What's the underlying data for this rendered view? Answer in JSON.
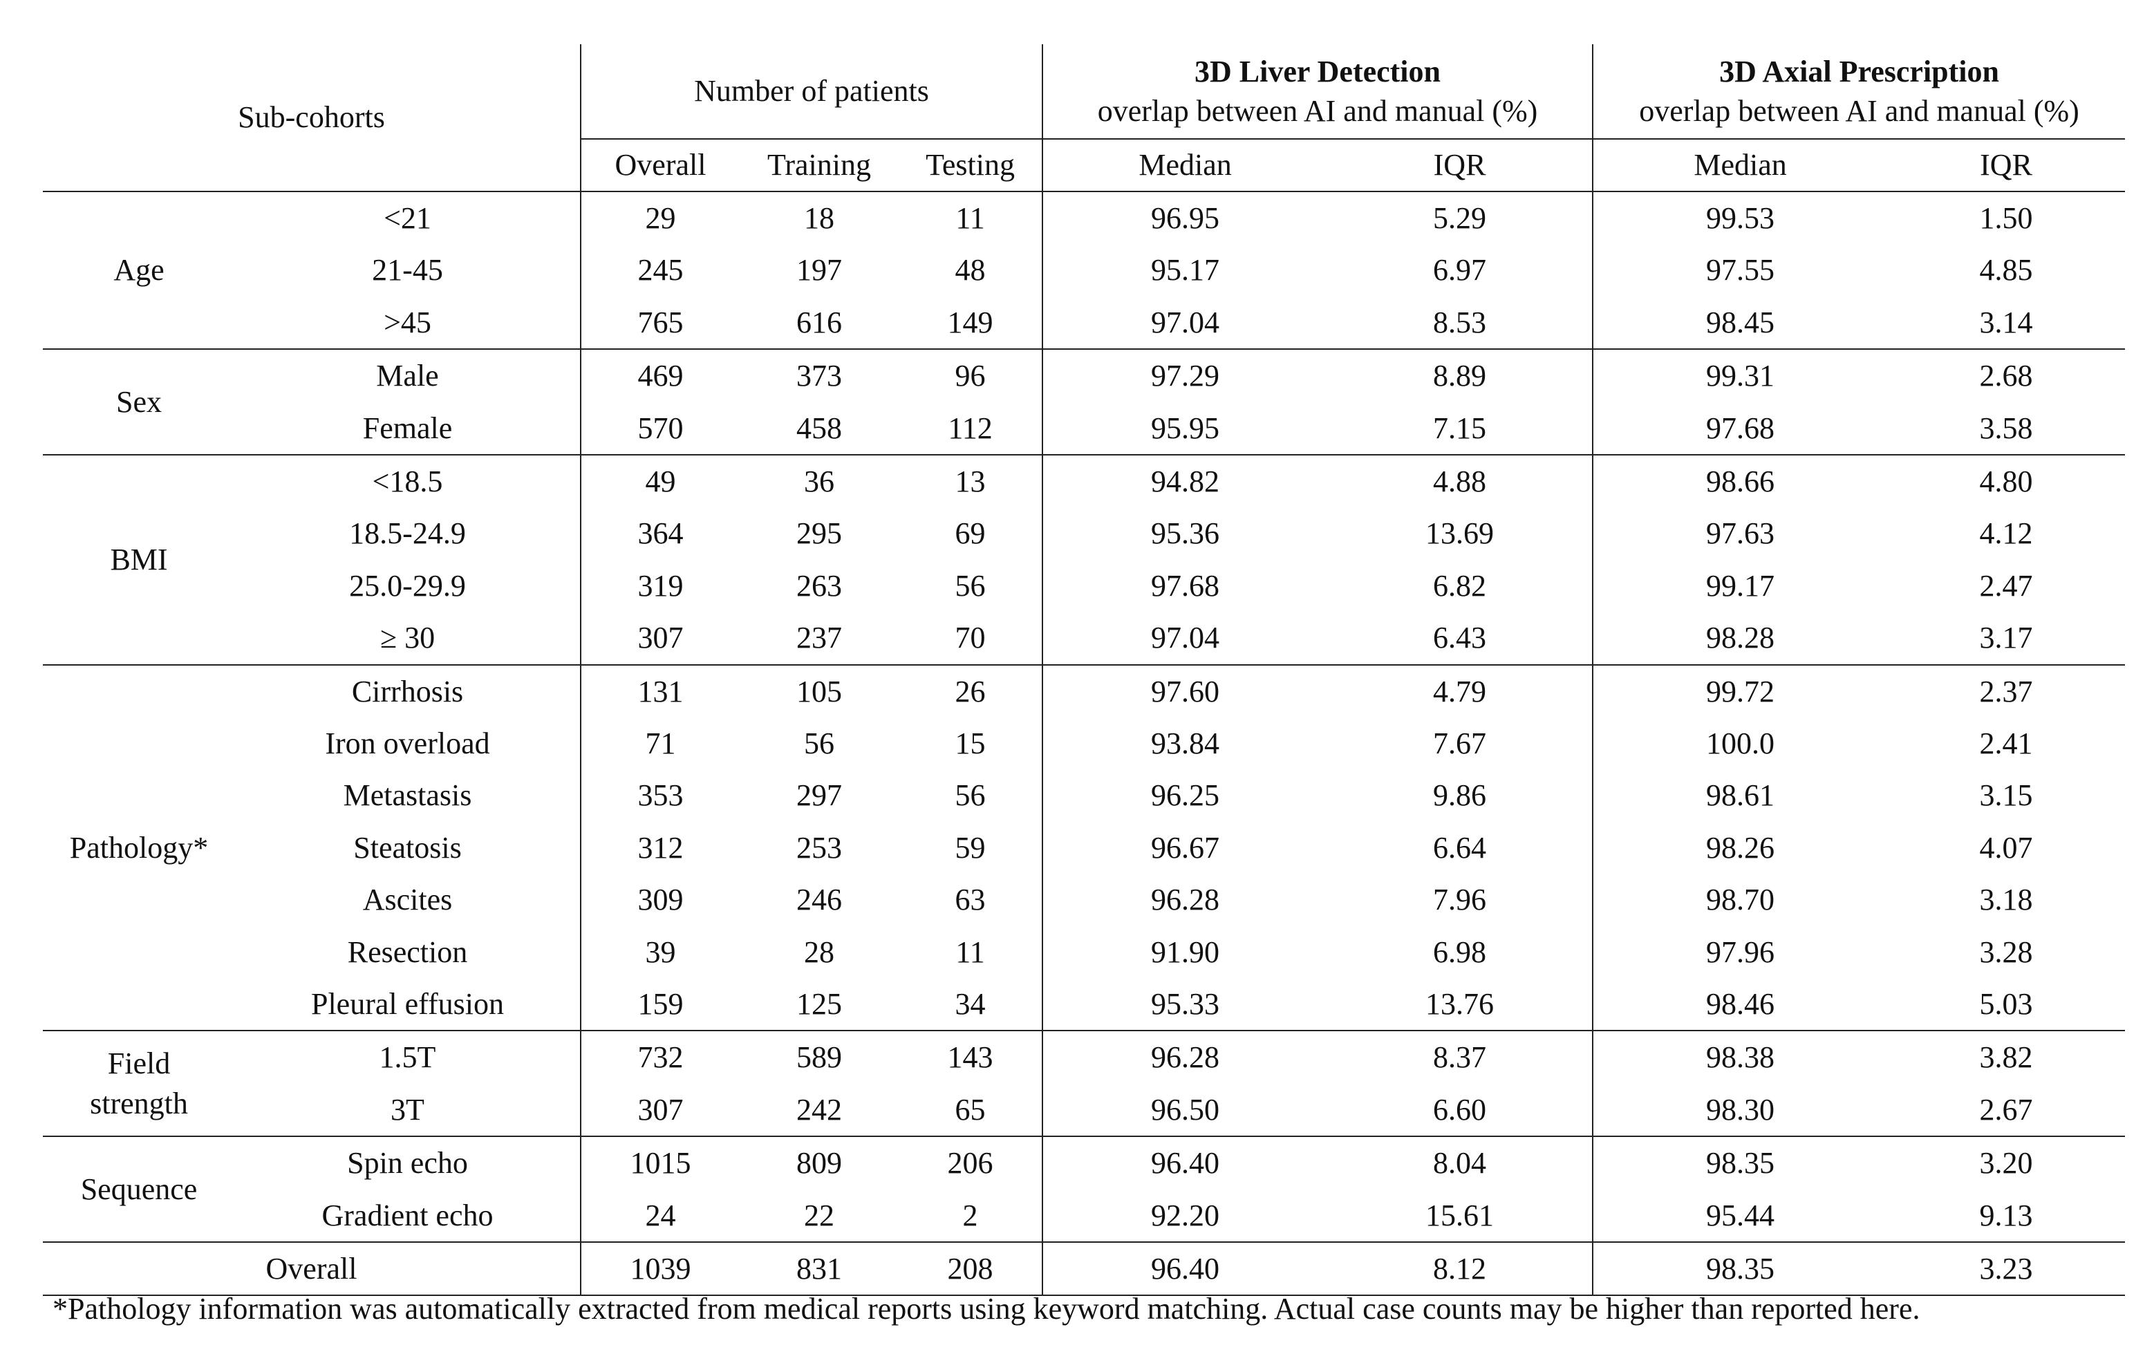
{
  "header": {
    "sub_cohorts": "Sub-cohorts",
    "patients": "Number of patients",
    "liver": {
      "title": "3D Liver Detection",
      "subtitle": "overlap between AI and manual (%)"
    },
    "axial": {
      "title": "3D Axial Prescription",
      "subtitle": "overlap between AI and manual (%)"
    },
    "subheaders": [
      "Overall",
      "Training",
      "Testing",
      "Median",
      "IQR",
      "Median",
      "IQR"
    ]
  },
  "table": {
    "groups": [
      {
        "label": "Age",
        "rows": [
          [
            "<21",
            "29",
            "18",
            "11",
            "96.95",
            "5.29",
            "99.53",
            "1.50"
          ],
          [
            "21-45",
            "245",
            "197",
            "48",
            "95.17",
            "6.97",
            "97.55",
            "4.85"
          ],
          [
            ">45",
            "765",
            "616",
            "149",
            "97.04",
            "8.53",
            "98.45",
            "3.14"
          ]
        ]
      },
      {
        "label": "Sex",
        "rows": [
          [
            "Male",
            "469",
            "373",
            "96",
            "97.29",
            "8.89",
            "99.31",
            "2.68"
          ],
          [
            "Female",
            "570",
            "458",
            "112",
            "95.95",
            "7.15",
            "97.68",
            "3.58"
          ]
        ]
      },
      {
        "label": "BMI",
        "rows": [
          [
            "<18.5",
            "49",
            "36",
            "13",
            "94.82",
            "4.88",
            "98.66",
            "4.80"
          ],
          [
            "18.5-24.9",
            "364",
            "295",
            "69",
            "95.36",
            "13.69",
            "97.63",
            "4.12"
          ],
          [
            "25.0-29.9",
            "319",
            "263",
            "56",
            "97.68",
            "6.82",
            "99.17",
            "2.47"
          ],
          [
            "≥ 30",
            "307",
            "237",
            "70",
            "97.04",
            "6.43",
            "98.28",
            "3.17"
          ]
        ]
      },
      {
        "label": "Pathology*",
        "rows": [
          [
            "Cirrhosis",
            "131",
            "105",
            "26",
            "97.60",
            "4.79",
            "99.72",
            "2.37"
          ],
          [
            "Iron overload",
            "71",
            "56",
            "15",
            "93.84",
            "7.67",
            "100.0",
            "2.41"
          ],
          [
            "Metastasis",
            "353",
            "297",
            "56",
            "96.25",
            "9.86",
            "98.61",
            "3.15"
          ],
          [
            "Steatosis",
            "312",
            "253",
            "59",
            "96.67",
            "6.64",
            "98.26",
            "4.07"
          ],
          [
            "Ascites",
            "309",
            "246",
            "63",
            "96.28",
            "7.96",
            "98.70",
            "3.18"
          ],
          [
            "Resection",
            "39",
            "28",
            "11",
            "91.90",
            "6.98",
            "97.96",
            "3.28"
          ],
          [
            "Pleural effusion",
            "159",
            "125",
            "34",
            "95.33",
            "13.76",
            "98.46",
            "5.03"
          ]
        ]
      },
      {
        "label": "Field strength",
        "rows": [
          [
            "1.5T",
            "732",
            "589",
            "143",
            "96.28",
            "8.37",
            "98.38",
            "3.82"
          ],
          [
            "3T",
            "307",
            "242",
            "65",
            "96.50",
            "6.60",
            "98.30",
            "2.67"
          ]
        ]
      },
      {
        "label": "Sequence",
        "rows": [
          [
            "Spin echo",
            "1015",
            "809",
            "206",
            "96.40",
            "8.04",
            "98.35",
            "3.20"
          ],
          [
            "Gradient echo",
            "24",
            "22",
            "2",
            "92.20",
            "15.61",
            "95.44",
            "9.13"
          ]
        ]
      }
    ],
    "overall_row": [
      "Overall",
      "1039",
      "831",
      "208",
      "96.40",
      "8.12",
      "98.35",
      "3.23"
    ]
  },
  "footnote": "*Pathology information was automatically extracted from medical reports using keyword matching. Actual case counts may be higher than reported here."
}
